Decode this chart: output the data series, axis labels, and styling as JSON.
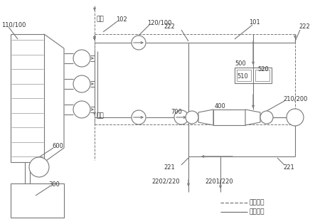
{
  "fig_width": 4.43,
  "fig_height": 3.15,
  "dpi": 100,
  "bg_color": "#ffffff",
  "gc": "#777777",
  "lw1": 0.8,
  "labels": {
    "110_100": "110/100",
    "102": "102",
    "120_100": "120/100",
    "101": "101",
    "222a": "222",
    "222b": "222",
    "700": "700",
    "500": "500",
    "510": "510",
    "520": "520",
    "400": "400",
    "210_200": "210/200",
    "600": "600",
    "300": "300",
    "221a": "221",
    "221b": "221",
    "2202_220": "2202/220",
    "2201_220": "2201/220",
    "jin_ye": "进液",
    "chu_ye": "出液",
    "legend_low": "低压管路",
    "legend_high": "高压管路"
  }
}
